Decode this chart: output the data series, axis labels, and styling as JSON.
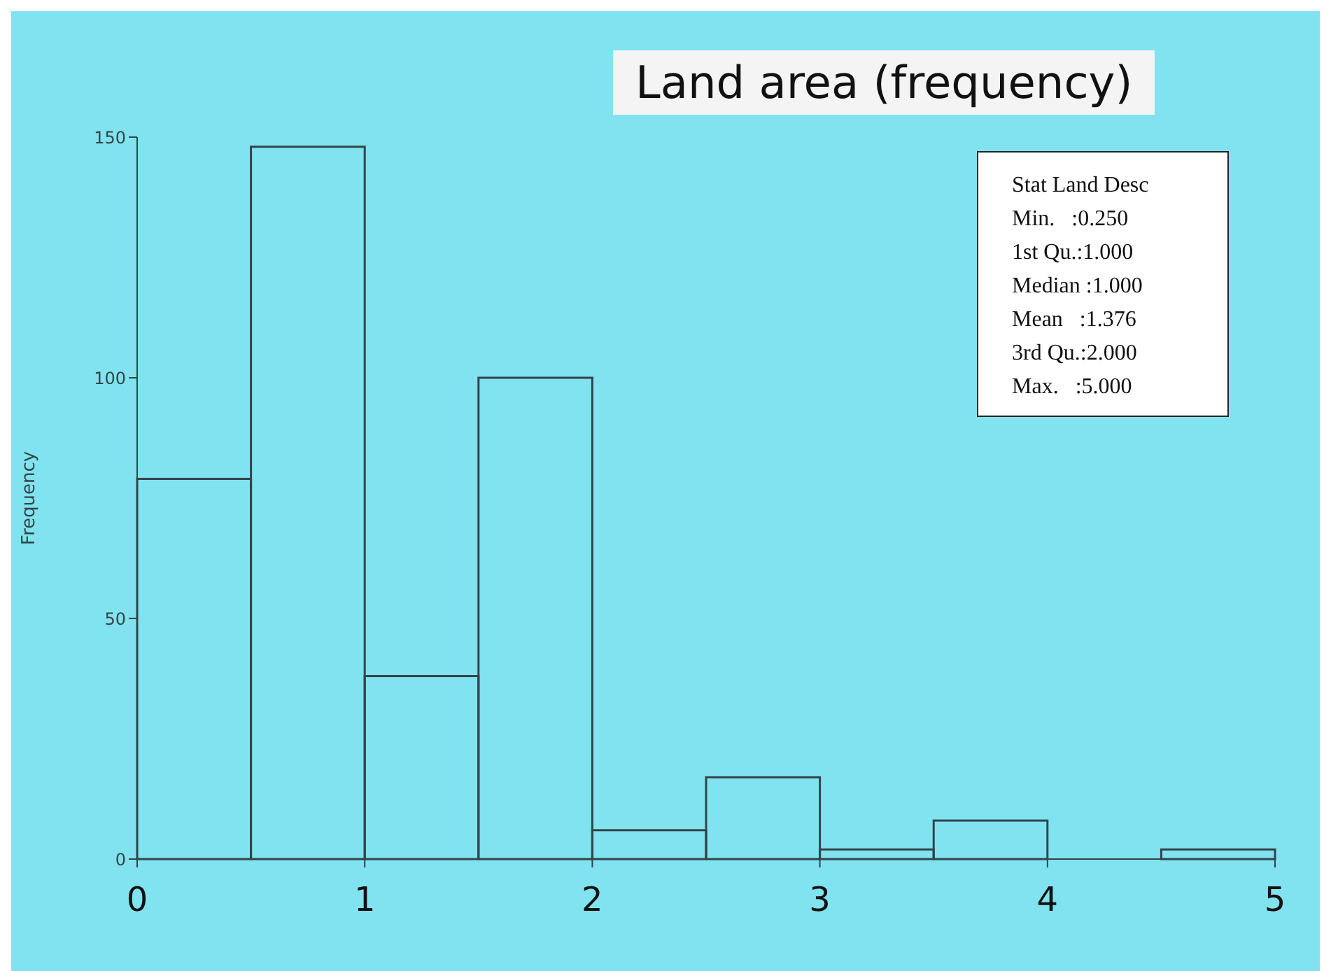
{
  "chart_data": {
    "type": "histogram",
    "title": "Land area (frequency)",
    "ylabel": "Frequency",
    "bins": [
      0,
      0.5,
      1,
      1.5,
      2,
      2.5,
      3,
      3.5,
      4,
      4.5,
      5
    ],
    "values": [
      79,
      148,
      38,
      100,
      6,
      17,
      2,
      8,
      0,
      2
    ],
    "color": "#33444a",
    "xlim": [
      0,
      5
    ],
    "xticks": [
      0,
      1,
      2,
      3,
      4,
      5
    ],
    "ylim": [
      0,
      150
    ],
    "yticks": [
      0,
      50,
      100,
      150
    ],
    "grid": false,
    "annotations": [
      "Stat Land Desc",
      "Min.   :0.250",
      "1st Qu.:1.000",
      "Median :1.000",
      "Mean   :1.376",
      "3rd Qu.:2.000",
      "Max.   :5.000"
    ]
  }
}
